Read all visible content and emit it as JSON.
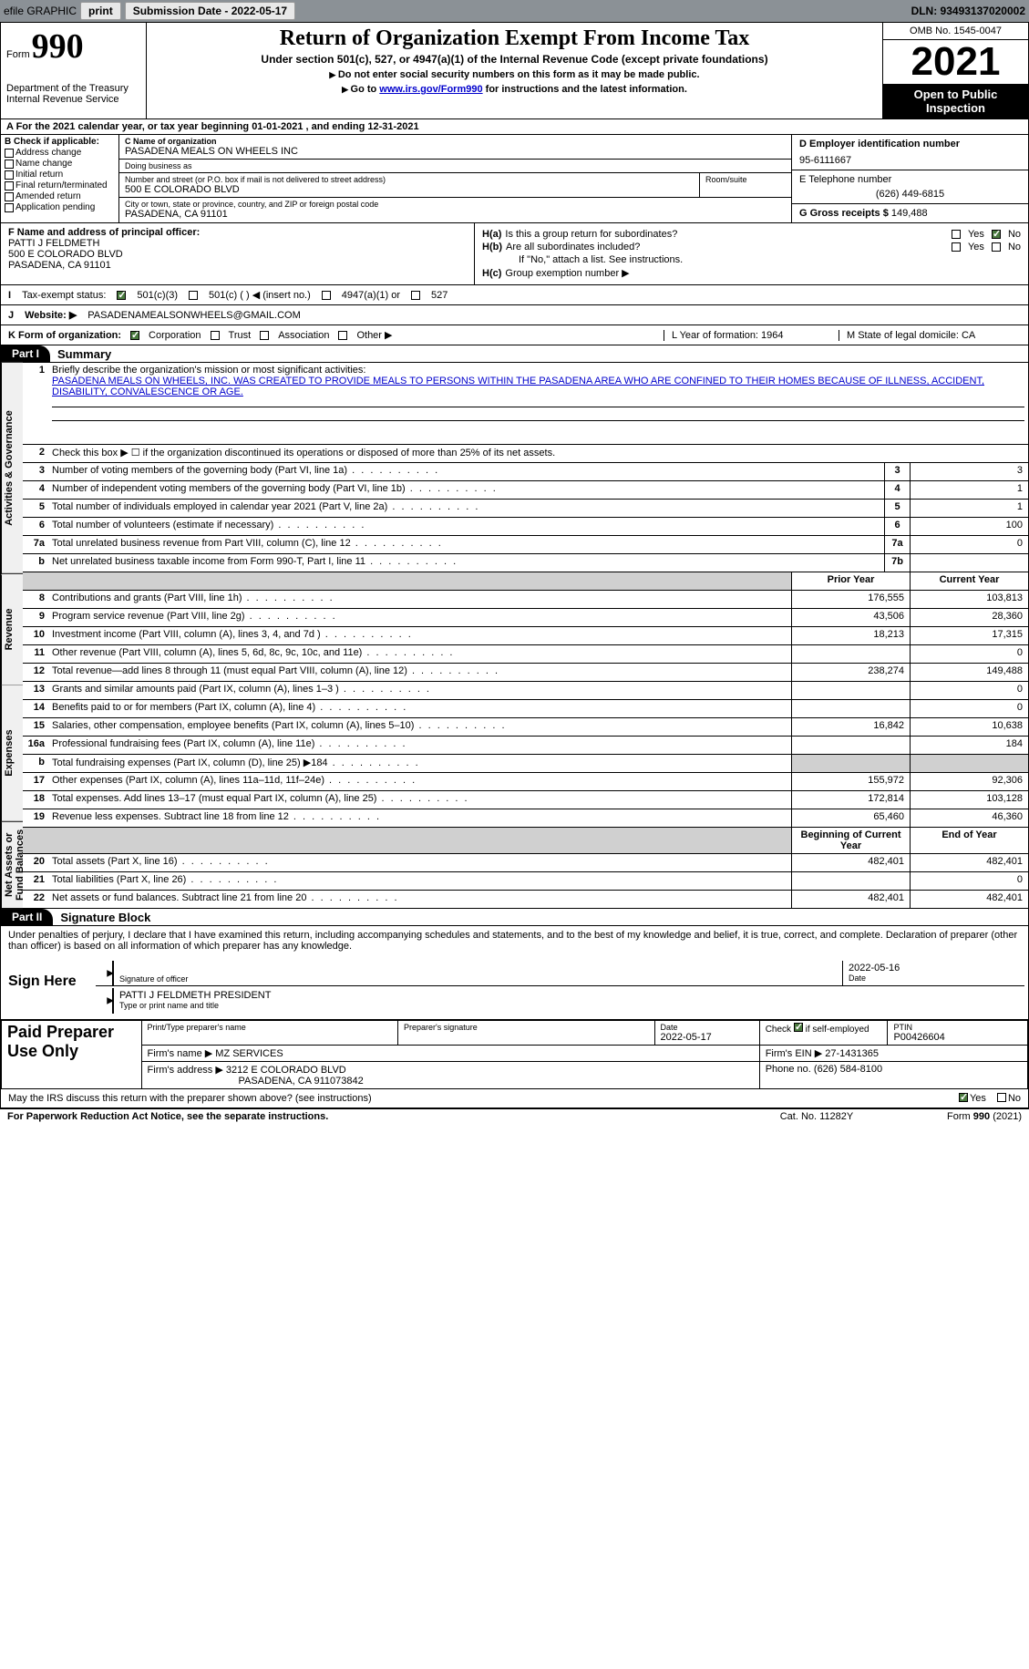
{
  "toolbar": {
    "efile_label": "efile GRAPHIC",
    "print_label": "print",
    "submission_label": "Submission Date - 2022-05-17",
    "dln_label": "DLN: 93493137020002"
  },
  "header": {
    "form_word": "Form",
    "form_number": "990",
    "dept": "Department of the Treasury",
    "irs": "Internal Revenue Service",
    "main_title": "Return of Organization Exempt From Income Tax",
    "sub_title": "Under section 501(c), 527, or 4947(a)(1) of the Internal Revenue Code (except private foundations)",
    "instruction1": "Do not enter social security numbers on this form as it may be made public.",
    "instruction2_pre": "Go to ",
    "instruction2_link": "www.irs.gov/Form990",
    "instruction2_post": " for instructions and the latest information.",
    "omb": "OMB No. 1545-0047",
    "year": "2021",
    "open_inspection": "Open to Public Inspection"
  },
  "row_a": "A For the 2021 calendar year, or tax year beginning 01-01-2021    , and ending 12-31-2021",
  "section_b": {
    "b_label": "B Check if applicable:",
    "addr_change": "Address change",
    "name_change": "Name change",
    "initial_return": "Initial return",
    "final_return": "Final return/terminated",
    "amended": "Amended return",
    "app_pending": "Application pending",
    "c_name_label": "C Name of organization",
    "org_name": "PASADENA MEALS ON WHEELS INC",
    "dba_label": "Doing business as",
    "dba_value": "",
    "street_label": "Number and street (or P.O. box if mail is not delivered to street address)",
    "street_value": "500 E COLORADO BLVD",
    "room_label": "Room/suite",
    "city_label": "City or town, state or province, country, and ZIP or foreign postal code",
    "city_value": "PASADENA, CA  91101",
    "d_ein_label": "D Employer identification number",
    "ein": "95-6111667",
    "e_tel_label": "E Telephone number",
    "tel": "(626) 449-6815",
    "g_receipts_label": "G Gross receipts $",
    "receipts": "149,488"
  },
  "row_f": {
    "label": "F Name and address of principal officer:",
    "name": "PATTI J FELDMETH",
    "addr1": "500 E COLORADO BLVD",
    "addr2": "PASADENA, CA  91101"
  },
  "row_h": {
    "ha_label": "H(a)",
    "ha_text": "Is this a group return for subordinates?",
    "hb_label": "H(b)",
    "hb_text": "Are all subordinates included?",
    "hb_note": "If \"No,\" attach a list. See instructions.",
    "hc_label": "H(c)",
    "hc_text": "Group exemption number ▶",
    "yes": "Yes",
    "no": "No"
  },
  "row_i": {
    "label": "I",
    "text": "Tax-exempt status:",
    "opt1": "501(c)(3)",
    "opt2": "501(c) (   ) ◀ (insert no.)",
    "opt3": "4947(a)(1) or",
    "opt4": "527"
  },
  "row_j": {
    "label": "J",
    "text": "Website: ▶",
    "value": "PASADENAMEALSONWHEELS@GMAIL.COM"
  },
  "row_k": {
    "label": "K Form of organization:",
    "corp": "Corporation",
    "trust": "Trust",
    "assoc": "Association",
    "other": "Other ▶",
    "l_label": "L Year of formation: 1964",
    "m_label": "M State of legal domicile: CA"
  },
  "part1": {
    "header": "Part I",
    "title": "Summary",
    "vert_activities": "Activities & Governance",
    "vert_revenue": "Revenue",
    "vert_expenses": "Expenses",
    "vert_net": "Net Assets or Fund Balances",
    "line1_label": "Briefly describe the organization's mission or most significant activities:",
    "line1_text": "PASADENA MEALS ON WHEELS, INC. WAS CREATED TO PROVIDE MEALS TO PERSONS WITHIN THE PASADENA AREA WHO ARE CONFINED TO THEIR HOMES BECAUSE OF ILLNESS, ACCIDENT, DISABILITY, CONVALESCENCE OR AGE.",
    "line2": "Check this box ▶ ☐ if the organization discontinued its operations or disposed of more than 25% of its net assets.",
    "lines": [
      {
        "n": "3",
        "t": "Number of voting members of the governing body (Part VI, line 1a)",
        "box": "3",
        "v": "3"
      },
      {
        "n": "4",
        "t": "Number of independent voting members of the governing body (Part VI, line 1b)",
        "box": "4",
        "v": "1"
      },
      {
        "n": "5",
        "t": "Total number of individuals employed in calendar year 2021 (Part V, line 2a)",
        "box": "5",
        "v": "1"
      },
      {
        "n": "6",
        "t": "Total number of volunteers (estimate if necessary)",
        "box": "6",
        "v": "100"
      },
      {
        "n": "7a",
        "t": "Total unrelated business revenue from Part VIII, column (C), line 12",
        "box": "7a",
        "v": "0"
      },
      {
        "n": "b",
        "t": "Net unrelated business taxable income from Form 990-T, Part I, line 11",
        "box": "7b",
        "v": ""
      }
    ],
    "col_prior": "Prior Year",
    "col_current": "Current Year",
    "rev_lines": [
      {
        "n": "8",
        "t": "Contributions and grants (Part VIII, line 1h)",
        "p": "176,555",
        "c": "103,813"
      },
      {
        "n": "9",
        "t": "Program service revenue (Part VIII, line 2g)",
        "p": "43,506",
        "c": "28,360"
      },
      {
        "n": "10",
        "t": "Investment income (Part VIII, column (A), lines 3, 4, and 7d )",
        "p": "18,213",
        "c": "17,315"
      },
      {
        "n": "11",
        "t": "Other revenue (Part VIII, column (A), lines 5, 6d, 8c, 9c, 10c, and 11e)",
        "p": "",
        "c": "0"
      },
      {
        "n": "12",
        "t": "Total revenue—add lines 8 through 11 (must equal Part VIII, column (A), line 12)",
        "p": "238,274",
        "c": "149,488"
      }
    ],
    "exp_lines": [
      {
        "n": "13",
        "t": "Grants and similar amounts paid (Part IX, column (A), lines 1–3 )",
        "p": "",
        "c": "0"
      },
      {
        "n": "14",
        "t": "Benefits paid to or for members (Part IX, column (A), line 4)",
        "p": "",
        "c": "0"
      },
      {
        "n": "15",
        "t": "Salaries, other compensation, employee benefits (Part IX, column (A), lines 5–10)",
        "p": "16,842",
        "c": "10,638"
      },
      {
        "n": "16a",
        "t": "Professional fundraising fees (Part IX, column (A), line 11e)",
        "p": "",
        "c": "184"
      },
      {
        "n": "b",
        "t": "Total fundraising expenses (Part IX, column (D), line 25) ▶184",
        "p": "shaded",
        "c": "shaded"
      },
      {
        "n": "17",
        "t": "Other expenses (Part IX, column (A), lines 11a–11d, 11f–24e)",
        "p": "155,972",
        "c": "92,306"
      },
      {
        "n": "18",
        "t": "Total expenses. Add lines 13–17 (must equal Part IX, column (A), line 25)",
        "p": "172,814",
        "c": "103,128"
      },
      {
        "n": "19",
        "t": "Revenue less expenses. Subtract line 18 from line 12",
        "p": "65,460",
        "c": "46,360"
      }
    ],
    "col_begin": "Beginning of Current Year",
    "col_end": "End of Year",
    "net_lines": [
      {
        "n": "20",
        "t": "Total assets (Part X, line 16)",
        "p": "482,401",
        "c": "482,401"
      },
      {
        "n": "21",
        "t": "Total liabilities (Part X, line 26)",
        "p": "",
        "c": "0"
      },
      {
        "n": "22",
        "t": "Net assets or fund balances. Subtract line 21 from line 20",
        "p": "482,401",
        "c": "482,401"
      }
    ]
  },
  "part2": {
    "header": "Part II",
    "title": "Signature Block",
    "declaration": "Under penalties of perjury, I declare that I have examined this return, including accompanying schedules and statements, and to the best of my knowledge and belief, it is true, correct, and complete. Declaration of preparer (other than officer) is based on all information of which preparer has any knowledge.",
    "sign_here": "Sign Here",
    "sig_officer": "Signature of officer",
    "sig_date": "2022-05-16",
    "date_label": "Date",
    "officer_name": "PATTI J FELDMETH PRESIDENT",
    "type_name": "Type or print name and title",
    "paid_prep": "Paid Preparer Use Only",
    "prep_name_label": "Print/Type preparer's name",
    "prep_sig_label": "Preparer's signature",
    "prep_date_label": "Date",
    "prep_date": "2022-05-17",
    "check_if": "Check ☑ if self-employed",
    "ptin_label": "PTIN",
    "ptin": "P00426604",
    "firm_name_label": "Firm's name    ▶",
    "firm_name": "MZ SERVICES",
    "firm_ein_label": "Firm's EIN ▶",
    "firm_ein": "27-1431365",
    "firm_addr_label": "Firm's address ▶",
    "firm_addr1": "3212 E COLORADO BLVD",
    "firm_addr2": "PASADENA, CA  911073842",
    "phone_label": "Phone no.",
    "phone": "(626) 584-8100",
    "may_irs": "May the IRS discuss this return with the preparer shown above? (see instructions)",
    "yes": "Yes",
    "no": "No"
  },
  "footer": {
    "left": "For Paperwork Reduction Act Notice, see the separate instructions.",
    "mid": "Cat. No. 11282Y",
    "right": "Form 990 (2021)"
  }
}
